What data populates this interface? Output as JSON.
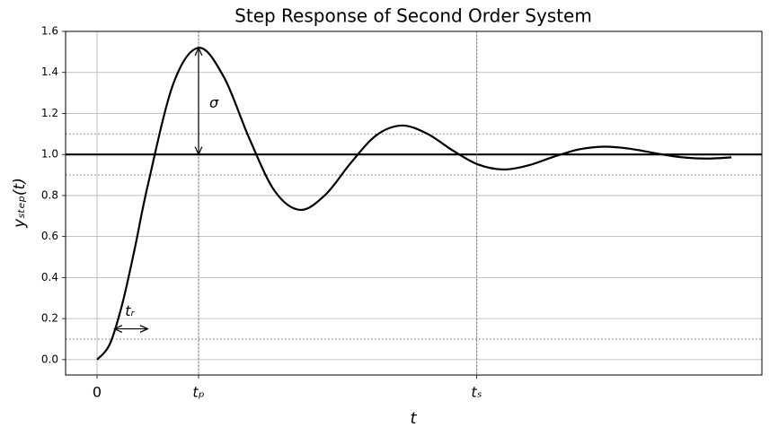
{
  "chart_data": {
    "type": "line",
    "title": "Step Response of Second Order System",
    "xlabel": "t",
    "ylabel": "yₛₜₑₚ(t)",
    "x": [
      0,
      0.125,
      0.25,
      0.375,
      0.5,
      0.75,
      1.0,
      1.25,
      1.5,
      1.75,
      2.0,
      2.25,
      2.5,
      2.75,
      3.0,
      3.25,
      3.5,
      3.75,
      4.0,
      4.25,
      4.5,
      4.75,
      5.0,
      5.25,
      5.5,
      5.75,
      6.0,
      6.25
    ],
    "values": [
      0,
      0.075,
      0.274,
      0.55,
      0.85,
      1.343,
      1.52,
      1.377,
      1.078,
      0.822,
      0.73,
      0.804,
      0.959,
      1.093,
      1.141,
      1.102,
      1.021,
      0.952,
      0.927,
      0.947,
      0.989,
      1.025,
      1.038,
      1.028,
      1.006,
      0.987,
      0.98,
      0.986
    ],
    "color": "#000000",
    "xlim": [
      -0.31,
      6.55
    ],
    "ylim": [
      -0.075,
      1.6
    ],
    "xticks": [
      0,
      {
        "value": 1,
        "label": "tₚ"
      },
      {
        "value": 3.74,
        "label": "tₛ"
      }
    ],
    "yticks": [
      {
        "value": 0,
        "label": "0.0"
      },
      0.2,
      0.4,
      0.6,
      0.8,
      {
        "value": 1,
        "label": "1.0"
      },
      1.2,
      1.4,
      1.6
    ],
    "grid": true,
    "hlines": [
      {
        "value": 1,
        "style": "solid"
      },
      {
        "value": 1.1,
        "style": "dotted"
      },
      {
        "value": 0.9,
        "style": "dotted"
      },
      {
        "value": 0.1,
        "style": "dotted"
      }
    ],
    "vlines": [
      {
        "value": 1,
        "style": "dotted"
      },
      {
        "value": 3.74,
        "style": "dotted"
      }
    ],
    "annotations": [
      {
        "text": "σ",
        "x": 1,
        "y_from": 1,
        "y_to": 1.52
      },
      {
        "text": "tᵣ",
        "y": 0.15,
        "x_from": 0.17,
        "x_to": 0.5
      }
    ]
  }
}
